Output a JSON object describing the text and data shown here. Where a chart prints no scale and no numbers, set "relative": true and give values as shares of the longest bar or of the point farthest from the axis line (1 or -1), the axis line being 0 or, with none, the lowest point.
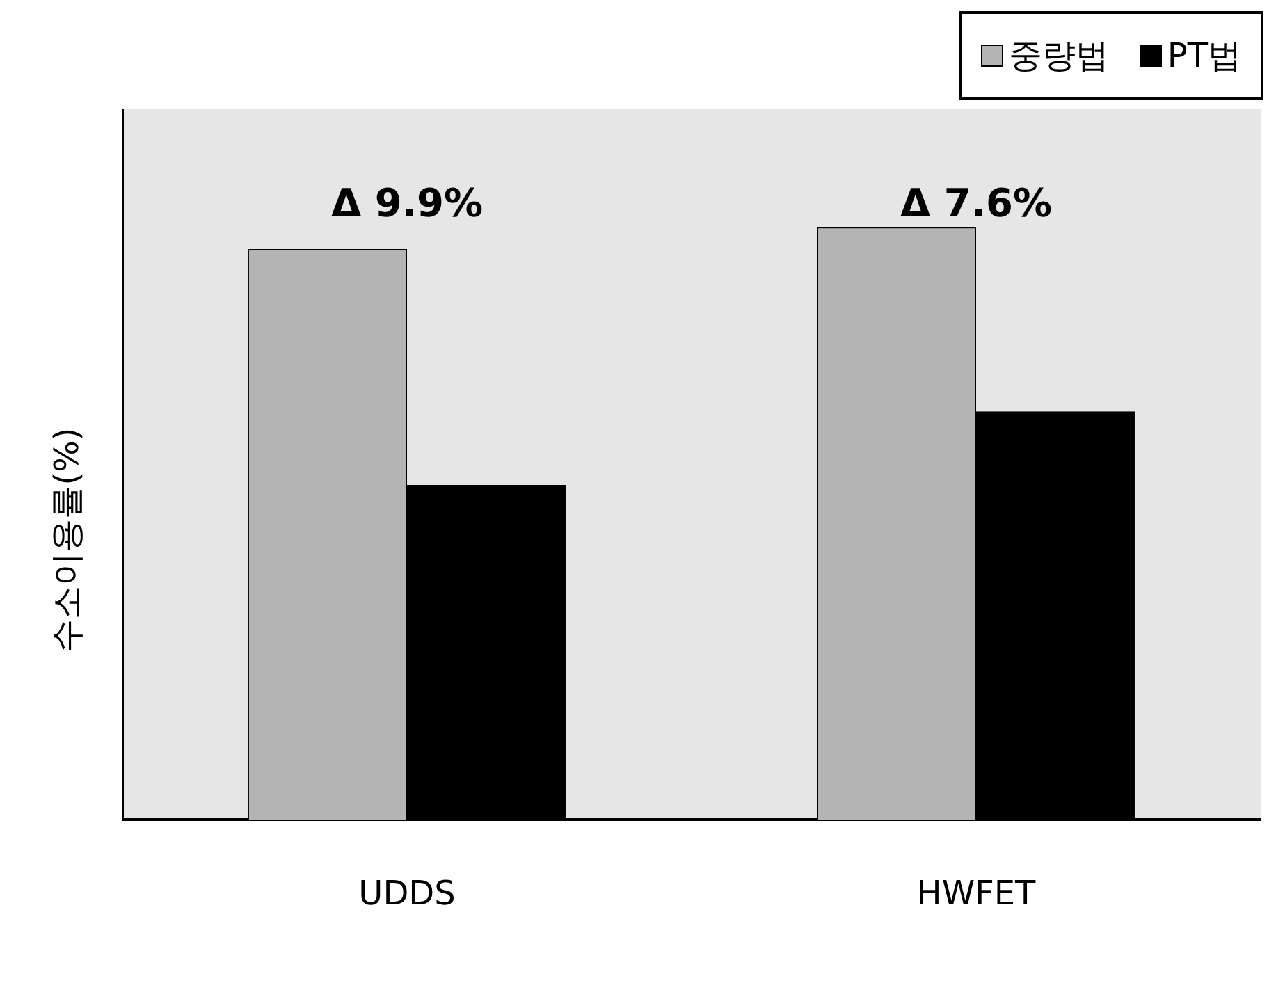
{
  "chart_data": {
    "type": "bar",
    "relative": true,
    "ylabel": "수소이용률(%)",
    "categories": [
      "UDDS",
      "HWFET"
    ],
    "series": [
      {
        "name": "중량법",
        "color": "#b4b4b4",
        "values": [
          0.963,
          1
        ]
      },
      {
        "name": "PT법",
        "color": "#000000",
        "values": [
          0.565,
          0.689
        ]
      }
    ],
    "annotations": [
      "Δ 9.9%",
      "Δ 7.6%"
    ],
    "legend": "top right",
    "grid": false
  }
}
